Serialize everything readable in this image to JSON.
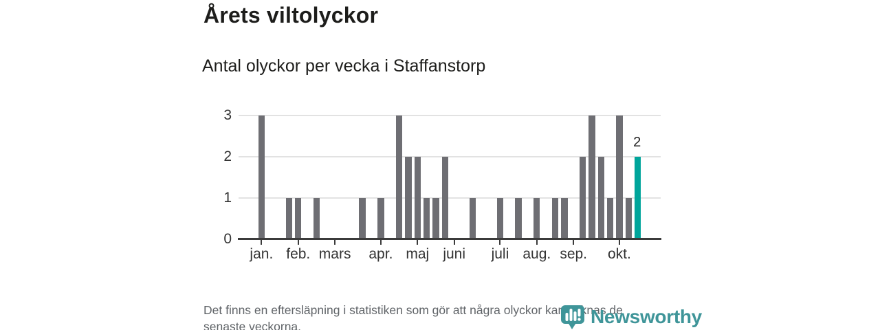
{
  "header": {
    "title": "Årets viltolyckor",
    "subtitle": "Antal olyckor per vecka i Staffanstorp"
  },
  "chart_data": {
    "type": "bar",
    "title": "Årets viltolyckor",
    "subtitle": "Antal olyckor per vecka i Staffanstorp",
    "ylabel": "",
    "xlabel": "",
    "ylim": [
      0,
      3
    ],
    "y_ticks": [
      0,
      1,
      2,
      3
    ],
    "grid": "horizontal",
    "weeks_shown": 46,
    "values": [
      0,
      0,
      3,
      0,
      0,
      1,
      1,
      0,
      1,
      0,
      0,
      0,
      0,
      1,
      0,
      1,
      0,
      3,
      2,
      2,
      1,
      1,
      2,
      0,
      0,
      1,
      0,
      0,
      1,
      0,
      1,
      0,
      1,
      0,
      1,
      1,
      0,
      2,
      3,
      2,
      1,
      3,
      1,
      2,
      0,
      0
    ],
    "highlight_index": 43,
    "highlight_label": "2",
    "month_ticks": [
      {
        "label": "jan.",
        "index": 2
      },
      {
        "label": "feb.",
        "index": 6
      },
      {
        "label": "mars",
        "index": 10
      },
      {
        "label": "apr.",
        "index": 15
      },
      {
        "label": "maj",
        "index": 19
      },
      {
        "label": "juni",
        "index": 23
      },
      {
        "label": "juli",
        "index": 28
      },
      {
        "label": "aug.",
        "index": 32
      },
      {
        "label": "sep.",
        "index": 36
      },
      {
        "label": "okt.",
        "index": 41
      }
    ],
    "colors": {
      "bar": "#6e6e73",
      "highlight": "#00a59b",
      "gridline": "#e2e2e2",
      "axis": "#3b3b3b",
      "tick_label": "#333333",
      "annotation": "#222222"
    }
  },
  "footer": {
    "note": "Det finns en eftersläpning i statistiken som gör att några olyckor kan saknas de senaste veckorna.",
    "logo_text": "Newsworthy",
    "logo_color": "#3f9599"
  }
}
